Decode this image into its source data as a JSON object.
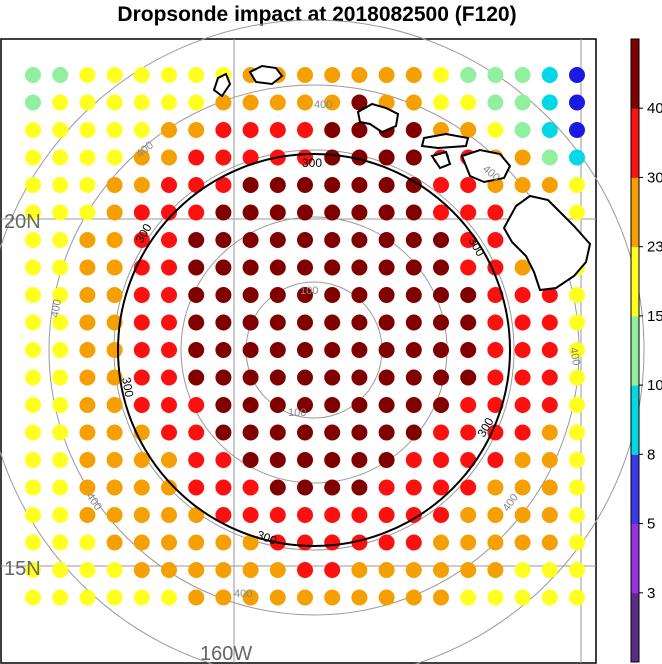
{
  "title": "Dropsonde impact at 2018082500 (F120)",
  "map": {
    "lat_labels": [
      "20N",
      "15N"
    ],
    "lon_labels": [
      "160W"
    ],
    "ring_label": "400",
    "inner_ring_label": "100",
    "contour_label": "300"
  },
  "colorbar": {
    "colors": [
      "#5b2b8a",
      "#9b30e0",
      "#3a3ae8",
      "#00d8e8",
      "#90f0a0",
      "#ffff20",
      "#f5a000",
      "#ff1010",
      "#800000"
    ],
    "tick_labels": [
      "3",
      "5",
      "8",
      "10",
      "15",
      "23",
      "30",
      "40"
    ]
  },
  "legend_colors": {
    "maroon": "#800000",
    "red": "#ff1010",
    "orange": "#f5a000",
    "yellow": "#ffff20",
    "lightgreen": "#90f0a0",
    "cyan": "#00d8e8",
    "blue": "#1a1ae0"
  },
  "chart_data": {
    "type": "map-scatter",
    "description_key": "impact category per grid cell (row 0 = north)",
    "categories_legend": {
      "M": "maroon",
      "R": "red",
      "O": "orange",
      "Y": "yellow",
      "G": "lightgreen",
      "C": "cyan",
      "B": "blue"
    },
    "grid": [
      "GGYYYYYYOOOOOOOYGGGCB",
      "GYYYYYYOOOOOMOOYYGGCB",
      "YYYYYOORRRRMMMMOOYGCB",
      "YYYYOORRRRRMMMMRROOGC",
      "YYYOORRRMMMMMMMRROOOY",
      "YYYORRRMMMMMMMMRRROOY",
      "YYOORRMMMMMMMMMMRRROY",
      "YYOORRMMMMMMMMMMRROOY",
      "YYOORRMMMMMMMMMMMRRRY",
      "YYOORRMMMMMMMMMMMRRRY",
      "YYOORRMMMMMMMMMMMRRRY",
      "YYOORRMMMMMMMMMMMRRRY",
      "YYOORRRMMMMMMMMMRRRRY",
      "YYOOORRMMMMMMMMRRRROY",
      "YYOOOORRMMMMMMRRRROOY",
      "YYOOOORRRMMMMRRRROOOY",
      "YYOOOOORRRRRRRRROOOOY",
      "YYYOOOOOORRRRRROOOOOY",
      "YYYYOOOOOORROOOOOOYYY",
      "YYYYYYOOOOOOOOOOYYYYY"
    ]
  }
}
